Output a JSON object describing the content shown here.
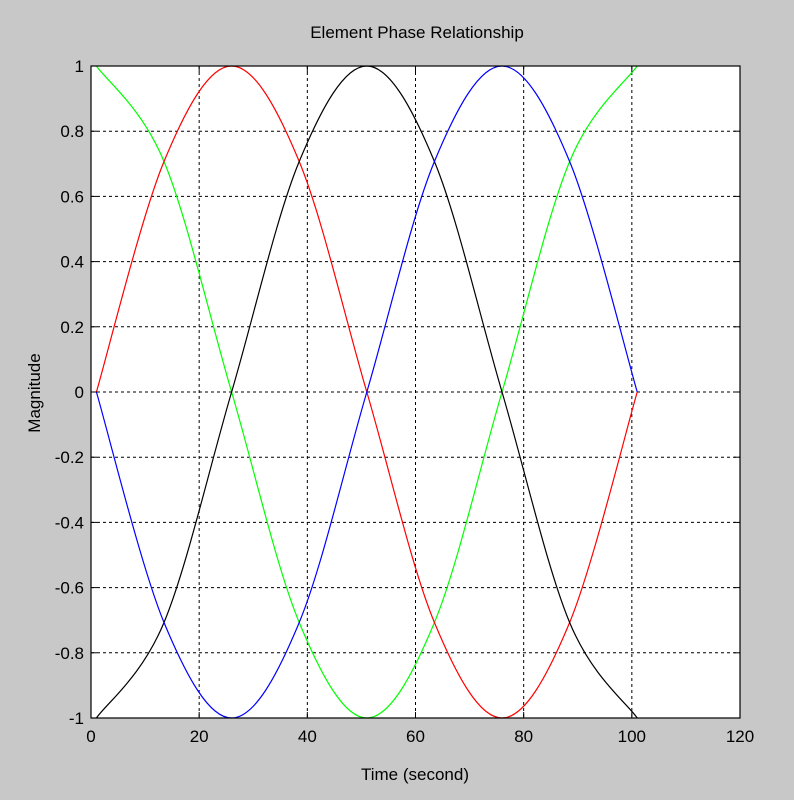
{
  "chart_data": {
    "type": "line",
    "title": "Element Phase Relationship",
    "xlabel": "Time (second)",
    "ylabel": "Magnitude",
    "xlim": [
      0,
      120
    ],
    "ylim": [
      -1,
      1
    ],
    "x_ticks": [
      0,
      20,
      40,
      60,
      80,
      100,
      120
    ],
    "y_ticks": [
      -1,
      -0.8,
      -0.6,
      -0.4,
      -0.2,
      0,
      0.2,
      0.4,
      0.6,
      0.8,
      1
    ],
    "x_tick_labels": [
      "0",
      "20",
      "40",
      "60",
      "80",
      "100",
      "120"
    ],
    "y_tick_labels": [
      "-1",
      "-0.8",
      "-0.6",
      "-0.4",
      "-0.2",
      "0",
      "0.2",
      "0.4",
      "0.6",
      "0.8",
      "1"
    ],
    "grid": true,
    "background": "#c8c8c8",
    "plot_background": "#ffffff",
    "series": [
      {
        "color": "#00ff00",
        "x": [
          1,
          13.5,
          26,
          38.5,
          51,
          63.5,
          76,
          88.5,
          101
        ],
        "y": [
          1,
          0.707,
          0,
          -0.707,
          -1,
          -0.707,
          0,
          0.707,
          1
        ]
      },
      {
        "color": "#ff0000",
        "x": [
          1,
          13.5,
          26,
          38.5,
          51,
          63.5,
          76,
          88.5,
          101
        ],
        "y": [
          0,
          0.707,
          1,
          0.707,
          0,
          -0.707,
          -1,
          -0.707,
          0
        ]
      },
      {
        "color": "#000000",
        "x": [
          1,
          13.5,
          26,
          38.5,
          51,
          63.5,
          76,
          88.5,
          101
        ],
        "y": [
          -1,
          -0.707,
          0,
          0.707,
          1,
          0.707,
          0,
          -0.707,
          -1
        ]
      },
      {
        "color": "#0000ff",
        "x": [
          1,
          13.5,
          26,
          38.5,
          51,
          63.5,
          76,
          88.5,
          101
        ],
        "y": [
          0,
          -0.707,
          -1,
          -0.707,
          0,
          0.707,
          1,
          0.707,
          0
        ]
      }
    ]
  }
}
